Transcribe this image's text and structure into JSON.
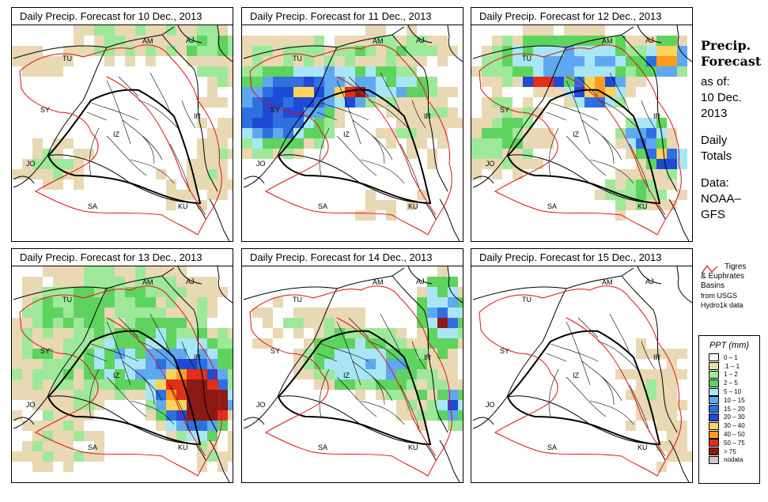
{
  "panels": [
    {
      "title": "Daily Precip. Forecast for  10 Dec., 2013"
    },
    {
      "title": "Daily Precip. Forecast for  11 Dec., 2013"
    },
    {
      "title": "Daily Precip. Forecast for  12 Dec., 2013"
    },
    {
      "title": "Daily Precip. Forecast for  13 Dec., 2013"
    },
    {
      "title": "Daily Precip. Forecast for  14 Dec., 2013"
    },
    {
      "title": "Daily Precip. Forecast for  15 Dec., 2013"
    }
  ],
  "country_labels": [
    "AM",
    "AJ",
    "TU",
    "SY",
    "IZ",
    "IR",
    "JO",
    "SA",
    "KU"
  ],
  "sidebar": {
    "title_line1": "Precip.",
    "title_line2": "Forecast",
    "asof": "as of:",
    "date_line1": "10 Dec.",
    "date_line2": "2013",
    "daily_line1": "Daily",
    "daily_line2": "Totals",
    "data_line1": "Data:",
    "data_line2": "NOAA–",
    "data_line3": "GFS"
  },
  "basin_legend": {
    "line1": "Tigres",
    "line2": "& Euphrates",
    "line3": "Basins",
    "line4": "from USGS",
    "line5": "Hydro1k data",
    "color": "#dd1111"
  },
  "ppt_legend": {
    "title": "PPT (mm)",
    "items": [
      {
        "label": "0 – 1",
        "color": "#ffffff"
      },
      {
        "label": ".1 – 1",
        "color": "#e9d8b4"
      },
      {
        "label": "1 – 2",
        "color": "#9ee89a"
      },
      {
        "label": "2 – 5",
        "color": "#5ed35e"
      },
      {
        "label": "5 – 10",
        "color": "#a9e6f5"
      },
      {
        "label": "10 – 15",
        "color": "#5fa8f0"
      },
      {
        "label": "15 – 20",
        "color": "#2f70e0"
      },
      {
        "label": "20 – 30",
        "color": "#1f4ad6"
      },
      {
        "label": "30 – 40",
        "color": "#ffd35a"
      },
      {
        "label": "40 – 50",
        "color": "#ff9b1e"
      },
      {
        "label": "50 – 75",
        "color": "#e0301a"
      },
      {
        "label": "> 75",
        "color": "#8b1a12"
      },
      {
        "label": "nodata",
        "color": "#c8c8c8"
      }
    ]
  }
}
